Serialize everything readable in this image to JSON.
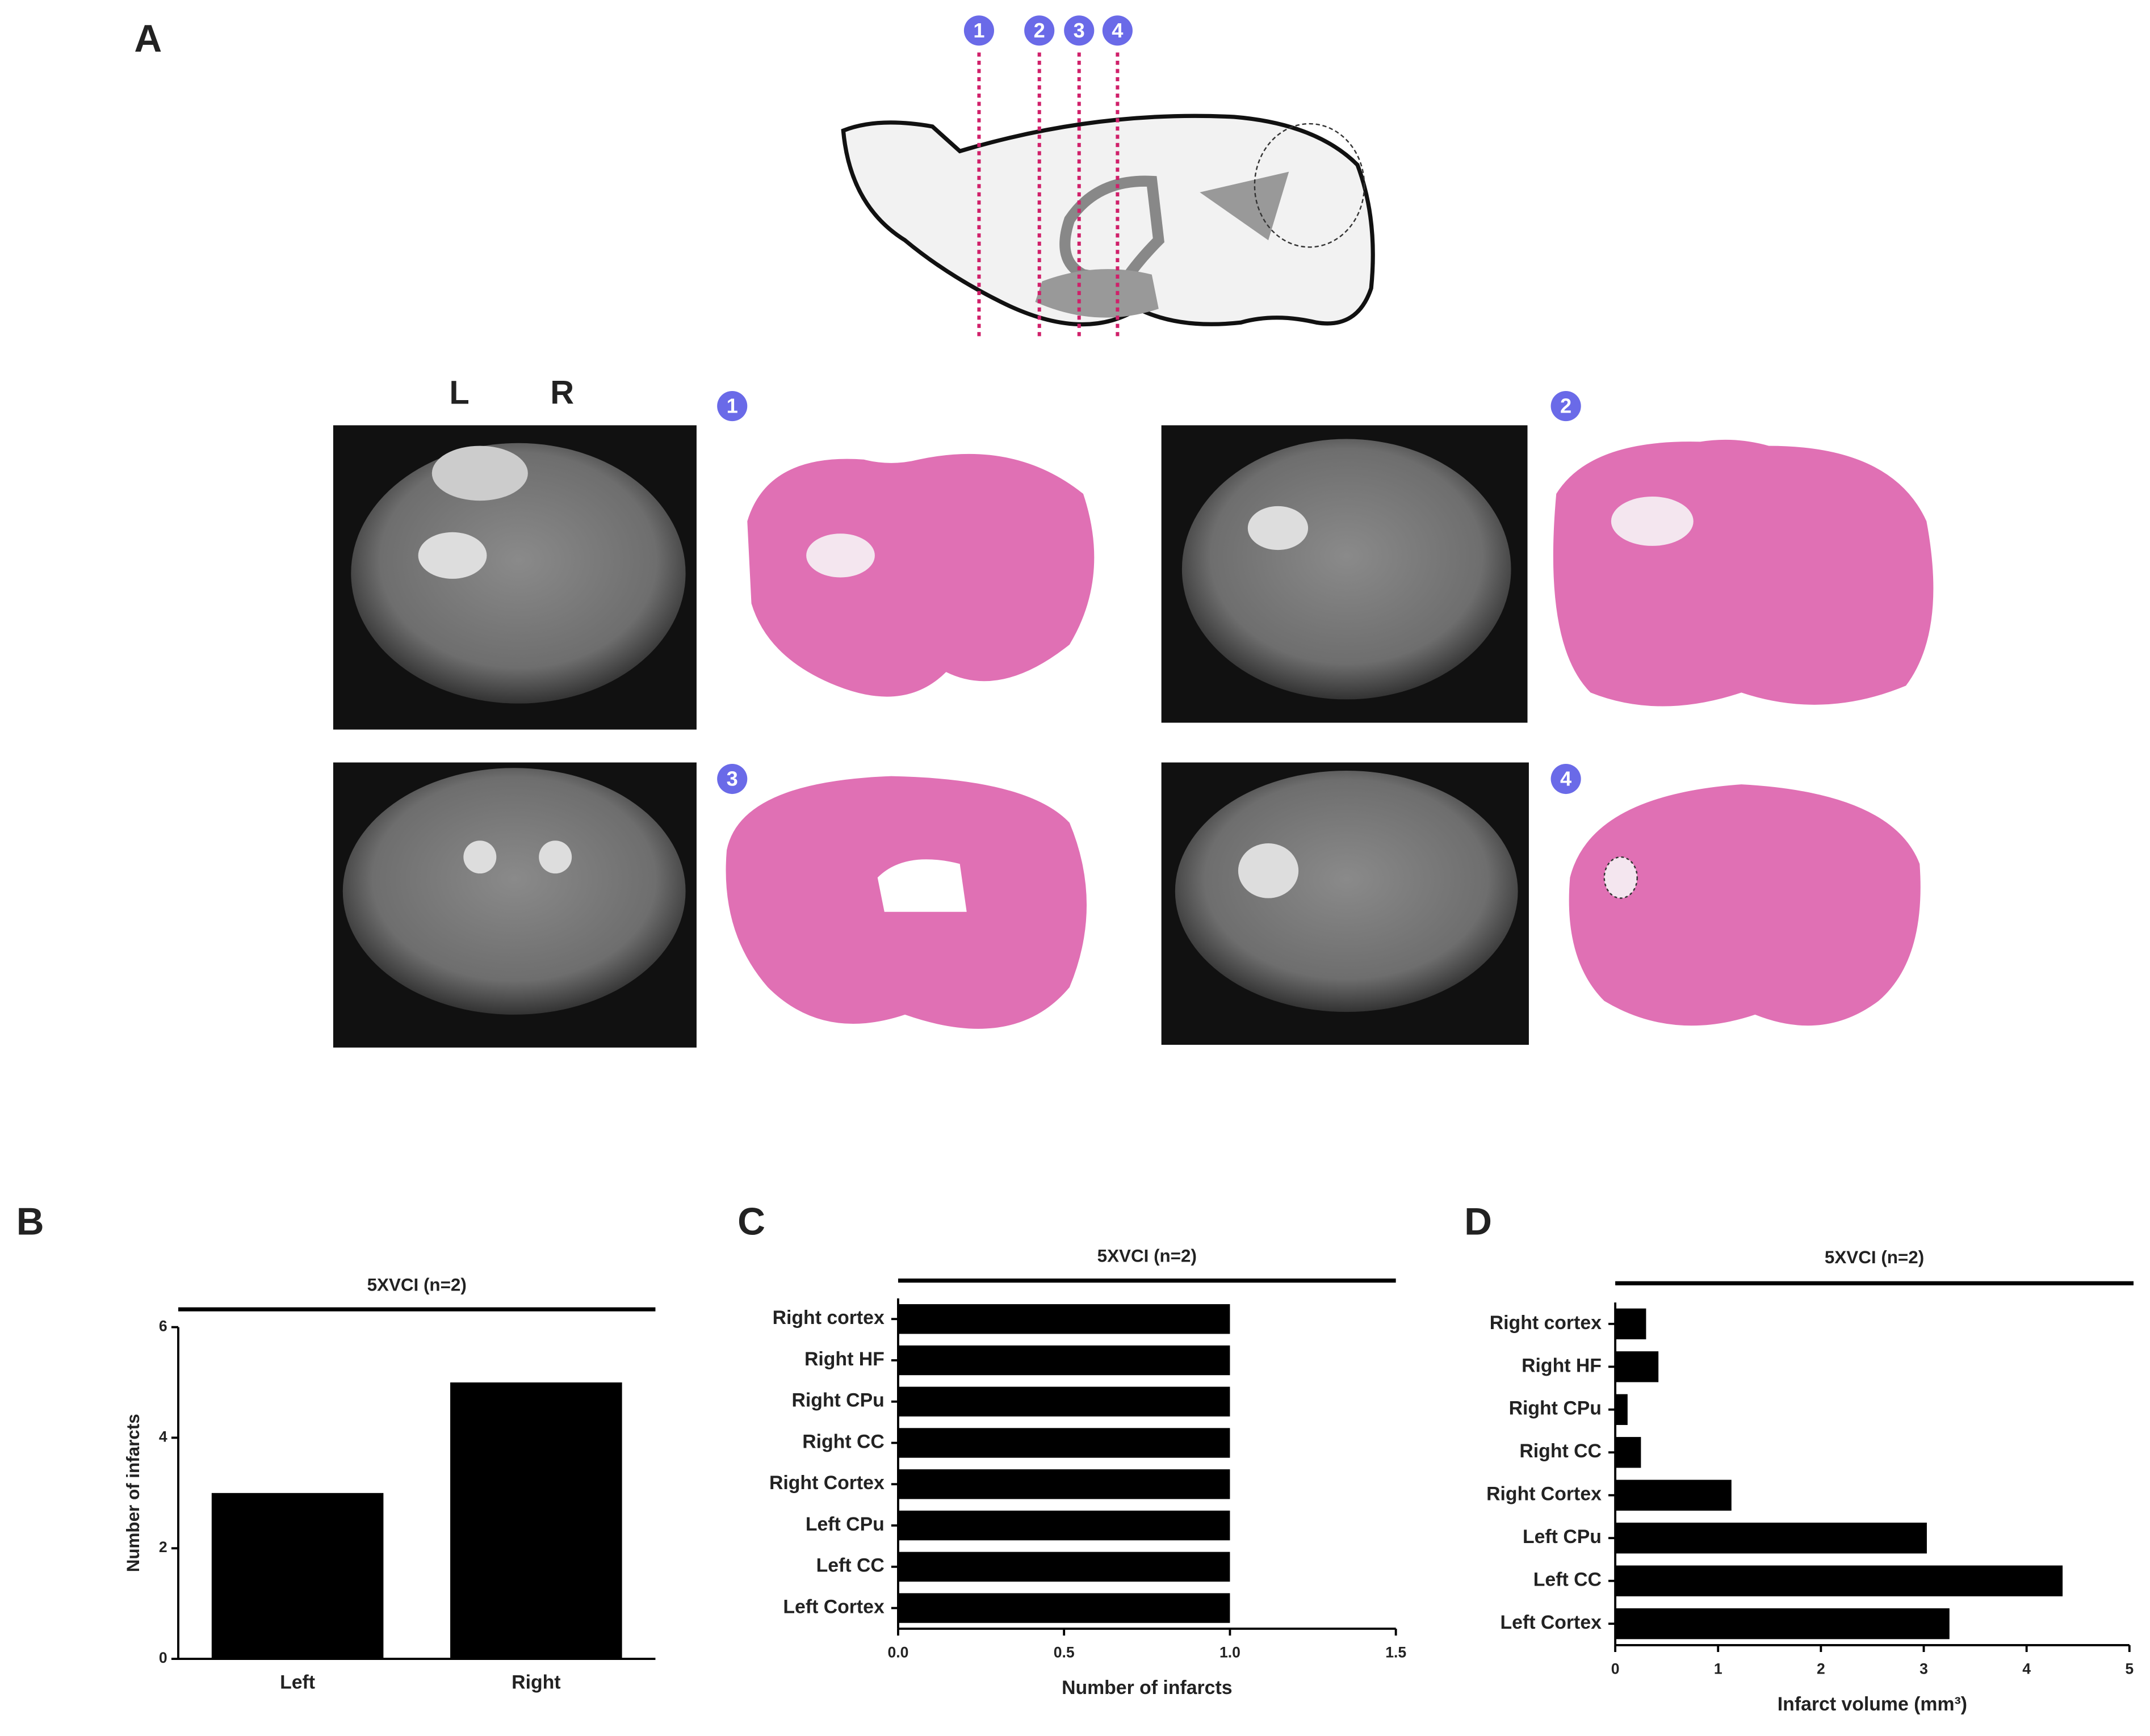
{
  "panel_a": {
    "label": "A",
    "section_markers": [
      "1",
      "2",
      "3",
      "4"
    ],
    "hemisphere_labels": [
      "L",
      "R"
    ]
  },
  "chart_data": [
    {
      "type": "bar",
      "panel_label": "B",
      "title": "5XVCI (n=2)",
      "y_label": "Number of infarcts",
      "categories": [
        "Left",
        "Right"
      ],
      "values": [
        3,
        5
      ],
      "color": "#000000",
      "ylim": [
        0,
        6
      ],
      "yticks": [
        0,
        2,
        4,
        6
      ]
    },
    {
      "type": "barh",
      "panel_label": "C",
      "title": "5XVCI (n=2)",
      "x_label": "Number of infarcts",
      "categories": [
        "Right cortex",
        "Right HF",
        "Right CPu",
        "Right CC",
        "Right Cortex",
        "Left CPu",
        "Left CC",
        "Left Cortex"
      ],
      "values": [
        1,
        1,
        1,
        1,
        1,
        1,
        1,
        1
      ],
      "color": "#000000",
      "xlim": [
        0,
        1.5
      ],
      "xticks": [
        {
          "value": 0,
          "label": "0.0"
        },
        0.5,
        {
          "value": 1,
          "label": "1.0"
        },
        1.5
      ]
    },
    {
      "type": "barh",
      "panel_label": "D",
      "title": "5XVCI (n=2)",
      "x_label": "Infarct volume (mm³)",
      "categories": [
        "Right cortex",
        "Right HF",
        "Right CPu",
        "Right CC",
        "Right Cortex",
        "Left CPu",
        "Left CC",
        "Left Cortex"
      ],
      "values": [
        0.3,
        0.42,
        0.12,
        0.25,
        1.13,
        3.03,
        4.35,
        3.25
      ],
      "color": "#000000",
      "xlim": [
        0,
        5
      ],
      "xticks": [
        0,
        1,
        2,
        3,
        4,
        5
      ]
    }
  ]
}
